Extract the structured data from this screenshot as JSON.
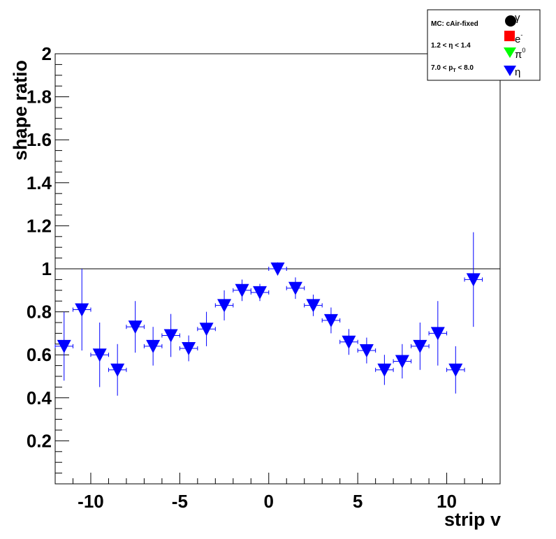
{
  "chart_data": {
    "type": "scatter",
    "xlabel": "strip v",
    "ylabel": "shape ratio",
    "xlim": [
      -12,
      13
    ],
    "ylim": [
      0,
      2
    ],
    "x_ticks": [
      -10,
      -5,
      0,
      5,
      10
    ],
    "x_tick_labels": [
      "-10",
      "-5",
      "0",
      "5",
      "10"
    ],
    "y_ticks": [
      0.2,
      0.4,
      0.6,
      0.8,
      1,
      1.2,
      1.4,
      1.6,
      1.8,
      2
    ],
    "y_tick_labels": [
      "0.2",
      "0.4",
      "0.6",
      "0.8",
      "1",
      "1.2",
      "1.4",
      "1.6",
      "1.8",
      "2"
    ],
    "reference_line": 1,
    "grid": false,
    "legend": {
      "position": "top-right",
      "header": [
        "MC: cAir-fixed",
        "1.2 < η < 1.4",
        "7.0 < p_T < 8.0"
      ],
      "entries": [
        {
          "label": "γ",
          "marker": "circle",
          "color": "#000000"
        },
        {
          "label": "e-",
          "marker": "square",
          "color": "#ff0000"
        },
        {
          "label": "π0",
          "marker": "triangle-down",
          "color": "#00ff00"
        },
        {
          "label": "η",
          "marker": "triangle-down",
          "color": "#0000ff"
        }
      ]
    },
    "series": [
      {
        "name": "η",
        "color": "#0000ff",
        "marker": "triangle-down",
        "x": [
          -11.5,
          -10.5,
          -9.5,
          -8.5,
          -7.5,
          -6.5,
          -5.5,
          -4.5,
          -3.5,
          -2.5,
          -1.5,
          -0.5,
          0.5,
          1.5,
          2.5,
          3.5,
          4.5,
          5.5,
          6.5,
          7.5,
          8.5,
          9.5,
          10.5,
          11.5
        ],
        "y": [
          0.64,
          0.81,
          0.6,
          0.53,
          0.73,
          0.64,
          0.69,
          0.63,
          0.72,
          0.83,
          0.9,
          0.89,
          1.0,
          0.91,
          0.83,
          0.76,
          0.66,
          0.62,
          0.53,
          0.57,
          0.64,
          0.7,
          0.53,
          0.95
        ],
        "yerr": [
          0.16,
          0.19,
          0.15,
          0.12,
          0.12,
          0.09,
          0.1,
          0.06,
          0.08,
          0.07,
          0.05,
          0.04,
          0.03,
          0.05,
          0.05,
          0.06,
          0.06,
          0.06,
          0.07,
          0.08,
          0.11,
          0.15,
          0.11,
          0.22
        ],
        "xerr": 0.5
      }
    ]
  }
}
